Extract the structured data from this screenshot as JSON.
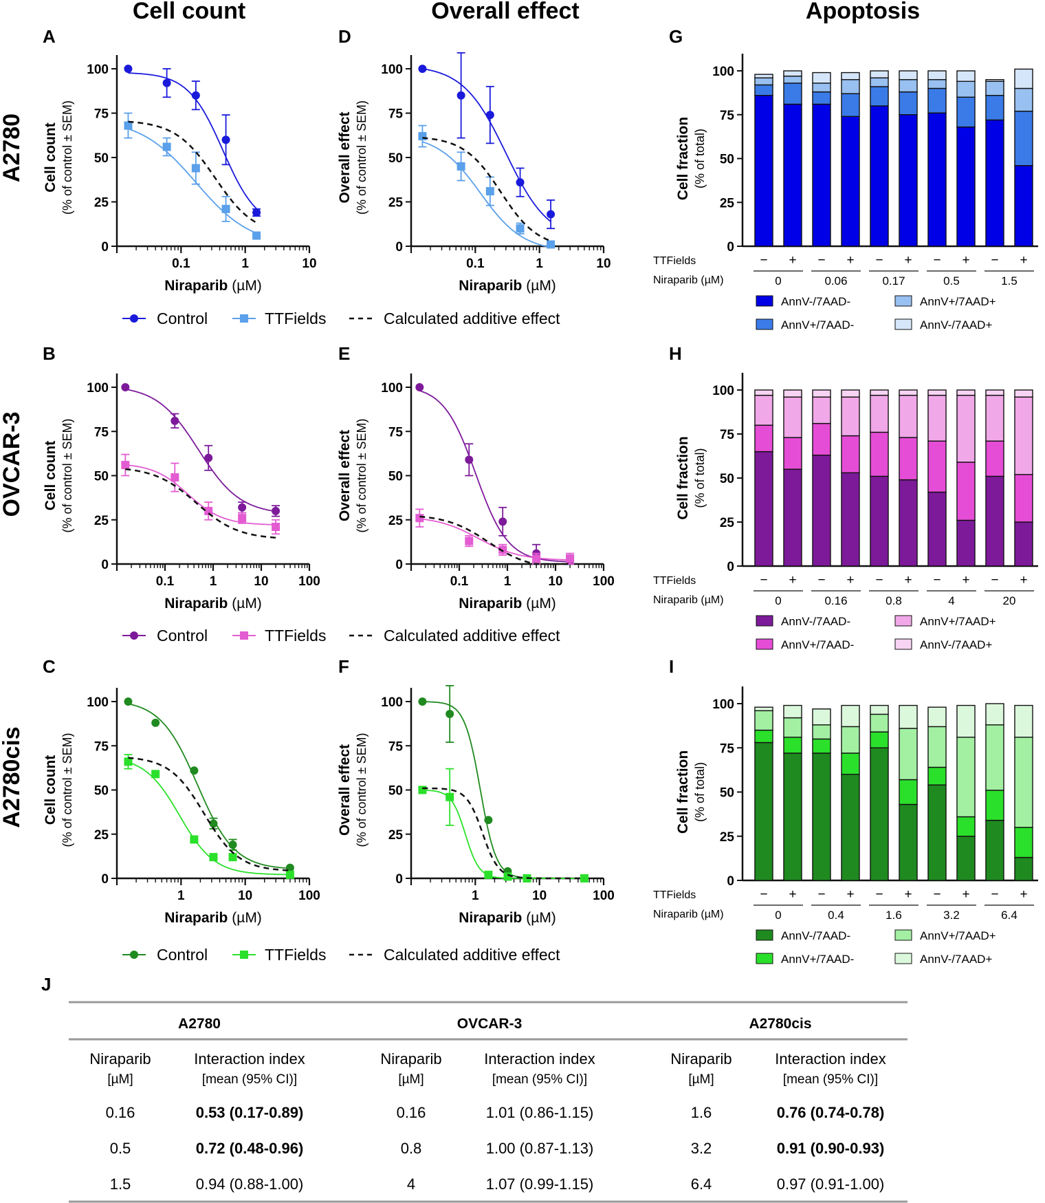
{
  "figure": {
    "col_headers": [
      "Cell count",
      "Overall effect",
      "Apoptosis"
    ],
    "row_labels": [
      "A2780",
      "OVCAR-3",
      "A2780cis"
    ],
    "panel_letters": {
      "A": "A",
      "B": "B",
      "C": "C",
      "D": "D",
      "E": "E",
      "F": "F",
      "G": "G",
      "H": "H",
      "I": "I",
      "J": "J"
    },
    "xlabel_main": "Niraparib",
    "xlabel_unit": " (µM)",
    "ylabel_count": "Cell count",
    "ylabel_effect": "Overall effect",
    "ylabel_sub": "(% of control ± SEM)",
    "ylabel_fraction": "Cell fraction",
    "ylabel_fraction_sub": "(% of total)",
    "ttf_row_label": "TTFields",
    "nir_row_label": "Niraparib (µM)",
    "minus": "−",
    "plus": "+",
    "legend_control": "Control",
    "legend_ttf": "TTFields",
    "legend_additive": "Calculated additive effect",
    "stack_legend": [
      "AnnV-/7AAD-",
      "AnnV+/7AAD-",
      "AnnV+/7AAD+",
      "AnnV-/7AAD+"
    ]
  },
  "chart_data": [
    {
      "id": "A",
      "type": "line",
      "title": "Cell count",
      "row": "A2780",
      "ylim": [
        0,
        100
      ],
      "yticks": [
        0,
        25,
        50,
        75,
        100
      ],
      "x_decades": [
        -2,
        1
      ],
      "xtick_labels": [
        "0.1",
        "1",
        "10"
      ],
      "xtick_values": [
        0.1,
        1,
        10
      ],
      "series": [
        {
          "name": "Control",
          "color": "#1a1adb",
          "marker": "circle",
          "x": [
            0.015,
            0.06,
            0.17,
            0.5,
            1.5
          ],
          "y": [
            100,
            92,
            85,
            60,
            19
          ],
          "err": [
            0,
            8,
            8,
            14,
            2
          ],
          "curve": {
            "top": 98,
            "bottom": 10,
            "ic50": 0.45,
            "hill": 1.6
          }
        },
        {
          "name": "TTFields",
          "color": "#5aa0ea",
          "marker": "square",
          "x": [
            0.015,
            0.06,
            0.17,
            0.5,
            1.5
          ],
          "y": [
            68,
            56,
            44,
            21,
            6
          ],
          "err": [
            7,
            5,
            9,
            7,
            0
          ],
          "curve": {
            "top": 72,
            "bottom": 0,
            "ic50": 0.17,
            "hill": 1.0
          }
        },
        {
          "name": "Calculated additive effect",
          "color": "#111111",
          "dashed": true,
          "curve": {
            "top": 71,
            "bottom": 6,
            "ic50": 0.34,
            "hill": 1.4
          }
        }
      ]
    },
    {
      "id": "B",
      "type": "line",
      "title": "Cell count",
      "row": "OVCAR-3",
      "ylim": [
        0,
        100
      ],
      "yticks": [
        0,
        25,
        50,
        75,
        100
      ],
      "x_decades": [
        -2,
        2
      ],
      "xtick_labels": [
        "0.1",
        "1",
        "10",
        "100"
      ],
      "xtick_values": [
        0.1,
        1,
        10,
        100
      ],
      "series": [
        {
          "name": "Control",
          "color": "#7d1a9a",
          "marker": "circle",
          "x": [
            0.015,
            0.16,
            0.8,
            4,
            20
          ],
          "y": [
            100,
            81,
            60,
            32,
            30
          ],
          "err": [
            0,
            4,
            7,
            3,
            3
          ],
          "curve": {
            "top": 101,
            "bottom": 28,
            "ic50": 0.5,
            "hill": 1.0
          }
        },
        {
          "name": "TTFields",
          "color": "#e35cd2",
          "marker": "square",
          "x": [
            0.015,
            0.16,
            0.8,
            4,
            20
          ],
          "y": [
            56,
            49,
            30,
            26,
            21
          ],
          "err": [
            6,
            8,
            5,
            3,
            4
          ],
          "curve": {
            "top": 57,
            "bottom": 22,
            "ic50": 0.3,
            "hill": 1.2
          }
        },
        {
          "name": "Calculated additive effect",
          "color": "#111111",
          "dashed": true,
          "curve": {
            "top": 55,
            "bottom": 14,
            "ic50": 0.45,
            "hill": 1.0
          }
        }
      ]
    },
    {
      "id": "C",
      "type": "line",
      "title": "Cell count",
      "row": "A2780cis",
      "ylim": [
        0,
        100
      ],
      "yticks": [
        0,
        25,
        50,
        75,
        100
      ],
      "x_decades": [
        -1,
        2
      ],
      "xtick_labels": [
        "1",
        "10",
        "100"
      ],
      "xtick_values": [
        1,
        10,
        100
      ],
      "series": [
        {
          "name": "Control",
          "color": "#1f8a1f",
          "marker": "circle",
          "x": [
            0.15,
            0.4,
            1.6,
            3.2,
            6.4,
            50
          ],
          "y": [
            100,
            88,
            61,
            31,
            19,
            6
          ],
          "err": [
            0,
            0,
            0,
            3,
            3,
            0
          ],
          "curve": {
            "top": 101,
            "bottom": 5,
            "ic50": 1.8,
            "hill": 1.5
          }
        },
        {
          "name": "TTFields",
          "color": "#2be02b",
          "marker": "square",
          "x": [
            0.15,
            0.4,
            1.6,
            3.2,
            6.4,
            50
          ],
          "y": [
            66,
            59,
            22,
            12,
            12,
            2
          ],
          "err": [
            4,
            0,
            0,
            0,
            0,
            0
          ],
          "curve": {
            "top": 69,
            "bottom": 2,
            "ic50": 0.95,
            "hill": 1.6
          }
        },
        {
          "name": "Calculated additive effect",
          "color": "#111111",
          "dashed": true,
          "curve": {
            "top": 69,
            "bottom": 4,
            "ic50": 2.3,
            "hill": 1.6
          }
        }
      ]
    },
    {
      "id": "D",
      "type": "line",
      "title": "Overall effect",
      "row": "A2780",
      "ylim": [
        0,
        100
      ],
      "yticks": [
        0,
        25,
        50,
        75,
        100
      ],
      "x_decades": [
        -2,
        1
      ],
      "xtick_labels": [
        "0.1",
        "1",
        "10"
      ],
      "xtick_values": [
        0.1,
        1,
        10
      ],
      "series": [
        {
          "name": "Control",
          "color": "#1a1adb",
          "marker": "circle",
          "x": [
            0.015,
            0.06,
            0.17,
            0.5,
            1.5
          ],
          "y": [
            100,
            85,
            74,
            36,
            18
          ],
          "err": [
            0,
            24,
            16,
            8,
            8
          ],
          "curve": {
            "top": 102,
            "bottom": 3,
            "ic50": 0.3,
            "hill": 1.3
          }
        },
        {
          "name": "TTFields",
          "color": "#5aa0ea",
          "marker": "square",
          "x": [
            0.015,
            0.06,
            0.17,
            0.5,
            1.5
          ],
          "y": [
            62,
            45,
            31,
            10,
            1
          ],
          "err": [
            6,
            8,
            8,
            3,
            0
          ],
          "curve": {
            "top": 63,
            "bottom": -3,
            "ic50": 0.12,
            "hill": 1.3
          }
        },
        {
          "name": "Calculated additive effect",
          "color": "#111111",
          "dashed": true,
          "curve": {
            "top": 62,
            "bottom": -1,
            "ic50": 0.25,
            "hill": 1.5
          }
        }
      ]
    },
    {
      "id": "E",
      "type": "line",
      "title": "Overall effect",
      "row": "OVCAR-3",
      "ylim": [
        0,
        100
      ],
      "yticks": [
        0,
        25,
        50,
        75,
        100
      ],
      "x_decades": [
        -2,
        2
      ],
      "xtick_labels": [
        "0.1",
        "1",
        "10",
        "100"
      ],
      "xtick_values": [
        0.1,
        1,
        10,
        100
      ],
      "series": [
        {
          "name": "Control",
          "color": "#7d1a9a",
          "marker": "circle",
          "x": [
            0.015,
            0.16,
            0.8,
            4,
            20
          ],
          "y": [
            100,
            59,
            24,
            6,
            2
          ],
          "err": [
            0,
            9,
            8,
            5,
            3
          ],
          "curve": {
            "top": 101,
            "bottom": 1,
            "ic50": 0.22,
            "hill": 1.3
          }
        },
        {
          "name": "TTFields",
          "color": "#e35cd2",
          "marker": "square",
          "x": [
            0.015,
            0.16,
            0.8,
            4,
            20
          ],
          "y": [
            26,
            13,
            8,
            3,
            3
          ],
          "err": [
            5,
            3,
            3,
            3,
            3
          ],
          "curve": {
            "top": 27,
            "bottom": 2,
            "ic50": 0.25,
            "hill": 1.0
          }
        },
        {
          "name": "Calculated additive effect",
          "color": "#111111",
          "dashed": true,
          "curve": {
            "top": 28,
            "bottom": -3,
            "ic50": 0.4,
            "hill": 1.0
          }
        }
      ]
    },
    {
      "id": "F",
      "type": "line",
      "title": "Overall effect",
      "row": "A2780cis",
      "ylim": [
        0,
        100
      ],
      "yticks": [
        0,
        25,
        50,
        75,
        100
      ],
      "x_decades": [
        -1,
        2
      ],
      "xtick_labels": [
        "1",
        "10",
        "100"
      ],
      "xtick_values": [
        1,
        10,
        100
      ],
      "series": [
        {
          "name": "Control",
          "color": "#1f8a1f",
          "marker": "circle",
          "x": [
            0.15,
            0.4,
            1.6,
            3.2,
            6.4,
            50
          ],
          "y": [
            100,
            93,
            33,
            4,
            0,
            0
          ],
          "err": [
            0,
            16,
            0,
            0,
            0,
            0
          ],
          "curve": {
            "top": 100,
            "bottom": 0,
            "ic50": 1.2,
            "hill": 3.5
          }
        },
        {
          "name": "TTFields",
          "color": "#2be02b",
          "marker": "square",
          "x": [
            0.15,
            0.4,
            1.6,
            3.2,
            6.4,
            50
          ],
          "y": [
            50,
            46,
            2,
            1,
            0,
            0
          ],
          "err": [
            0,
            16,
            0,
            0,
            0,
            0
          ],
          "curve": {
            "top": 50,
            "bottom": 0,
            "ic50": 0.7,
            "hill": 4.0
          }
        },
        {
          "name": "Calculated additive effect",
          "color": "#111111",
          "dashed": true,
          "curve": {
            "top": 51,
            "bottom": 0,
            "ic50": 1.3,
            "hill": 3.5
          }
        }
      ]
    },
    {
      "id": "G",
      "type": "bar",
      "stacked": true,
      "title": "Apoptosis",
      "row": "A2780",
      "ylim": [
        0,
        100
      ],
      "yticks": [
        0,
        25,
        50,
        75,
        100
      ],
      "groups": [
        "0",
        "0.06",
        "0.17",
        "0.5",
        "1.5"
      ],
      "colors": [
        "#0000e6",
        "#3a7be8",
        "#98c0f0",
        "#d6e6fa"
      ],
      "stacks": [
        [
          86,
          6,
          4,
          2
        ],
        [
          81,
          12,
          4,
          3
        ],
        [
          81,
          7,
          5,
          6
        ],
        [
          74,
          13,
          8,
          4
        ],
        [
          80,
          11,
          5,
          4
        ],
        [
          75,
          13,
          7,
          5
        ],
        [
          76,
          14,
          5,
          5
        ],
        [
          68,
          17,
          9,
          6
        ],
        [
          72,
          14,
          8,
          1
        ],
        [
          46,
          31,
          13,
          11
        ]
      ]
    },
    {
      "id": "H",
      "type": "bar",
      "stacked": true,
      "title": "Apoptosis",
      "row": "OVCAR-3",
      "ylim": [
        0,
        100
      ],
      "yticks": [
        0,
        25,
        50,
        75,
        100
      ],
      "groups": [
        "0",
        "0.16",
        "0.8",
        "4",
        "20"
      ],
      "colors": [
        "#7d1a9a",
        "#e64dd6",
        "#f0a8e8",
        "#f8d4f4"
      ],
      "stacks": [
        [
          65,
          15,
          17,
          3
        ],
        [
          55,
          18,
          23,
          4
        ],
        [
          63,
          18,
          15,
          4
        ],
        [
          53,
          21,
          22,
          4
        ],
        [
          51,
          25,
          21,
          3
        ],
        [
          49,
          24,
          24,
          3
        ],
        [
          42,
          29,
          26,
          3
        ],
        [
          26,
          33,
          38,
          3
        ],
        [
          51,
          20,
          26,
          3
        ],
        [
          25,
          27,
          44,
          4
        ]
      ]
    },
    {
      "id": "I",
      "type": "bar",
      "stacked": true,
      "title": "Apoptosis",
      "row": "A2780cis",
      "ylim": [
        0,
        100
      ],
      "yticks": [
        0,
        25,
        50,
        75,
        100
      ],
      "groups": [
        "0",
        "0.4",
        "1.6",
        "3.2",
        "6.4"
      ],
      "colors": [
        "#1f8a1f",
        "#2be02b",
        "#a3f0a3",
        "#dcf8dc"
      ],
      "stacks": [
        [
          78,
          7,
          11,
          2
        ],
        [
          72,
          9,
          11,
          7
        ],
        [
          72,
          8,
          8,
          9
        ],
        [
          60,
          12,
          15,
          12
        ],
        [
          75,
          9,
          10,
          5
        ],
        [
          43,
          14,
          29,
          13
        ],
        [
          54,
          10,
          23,
          11
        ],
        [
          25,
          11,
          45,
          18
        ],
        [
          34,
          17,
          37,
          12
        ],
        [
          13,
          17,
          51,
          18
        ]
      ]
    },
    {
      "id": "J",
      "type": "table",
      "title": "Interaction index",
      "cell_lines": [
        "A2780",
        "OVCAR-3",
        "A2780cis"
      ],
      "col_niraparib": "Niraparib",
      "col_niraparib_unit": "[µM]",
      "col_index": "Interaction index",
      "col_index_sub": "[mean (95% CI)]",
      "rows": [
        {
          "A2780": {
            "dose": "0.16",
            "value": "0.53 (0.17-0.89)",
            "bold": true
          },
          "OVCAR-3": {
            "dose": "0.16",
            "value": "1.01 (0.86-1.15)",
            "bold": false
          },
          "A2780cis": {
            "dose": "1.6",
            "value": "0.76 (0.74-0.78)",
            "bold": true
          }
        },
        {
          "A2780": {
            "dose": "0.5",
            "value": "0.72 (0.48-0.96)",
            "bold": true
          },
          "OVCAR-3": {
            "dose": "0.8",
            "value": "1.00 (0.87-1.13)",
            "bold": false
          },
          "A2780cis": {
            "dose": "3.2",
            "value": "0.91 (0.90-0.93)",
            "bold": true
          }
        },
        {
          "A2780": {
            "dose": "1.5",
            "value": "0.94 (0.88-1.00)",
            "bold": false
          },
          "OVCAR-3": {
            "dose": "4",
            "value": "1.07 (0.99-1.15)",
            "bold": false
          },
          "A2780cis": {
            "dose": "6.4",
            "value": "0.97 (0.91-1.00)",
            "bold": false
          }
        }
      ]
    }
  ]
}
